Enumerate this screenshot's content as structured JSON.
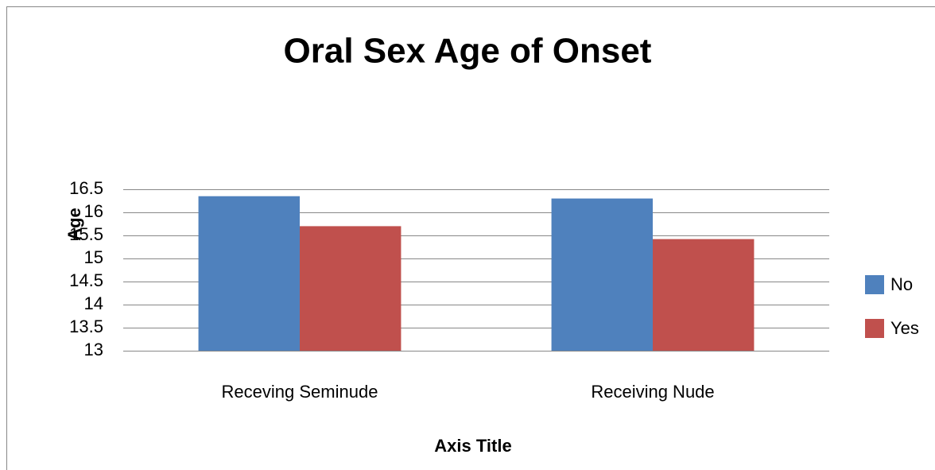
{
  "chart_data": {
    "type": "bar",
    "title": "Oral Sex Age of Onset",
    "y_label": "Age",
    "x_label": "Axis Title",
    "categories": [
      "Receving Seminude",
      "Receiving Nude"
    ],
    "series": [
      {
        "name": "No",
        "color": "#4f81bd",
        "values": [
          16.35,
          16.3
        ]
      },
      {
        "name": "Yes",
        "color": "#c0504d",
        "values": [
          15.7,
          15.42
        ]
      }
    ],
    "ylim": [
      13,
      16.5
    ],
    "yticks": [
      13,
      13.5,
      14,
      14.5,
      15,
      15.5,
      16,
      16.5
    ],
    "grid": true,
    "legend": "right"
  }
}
